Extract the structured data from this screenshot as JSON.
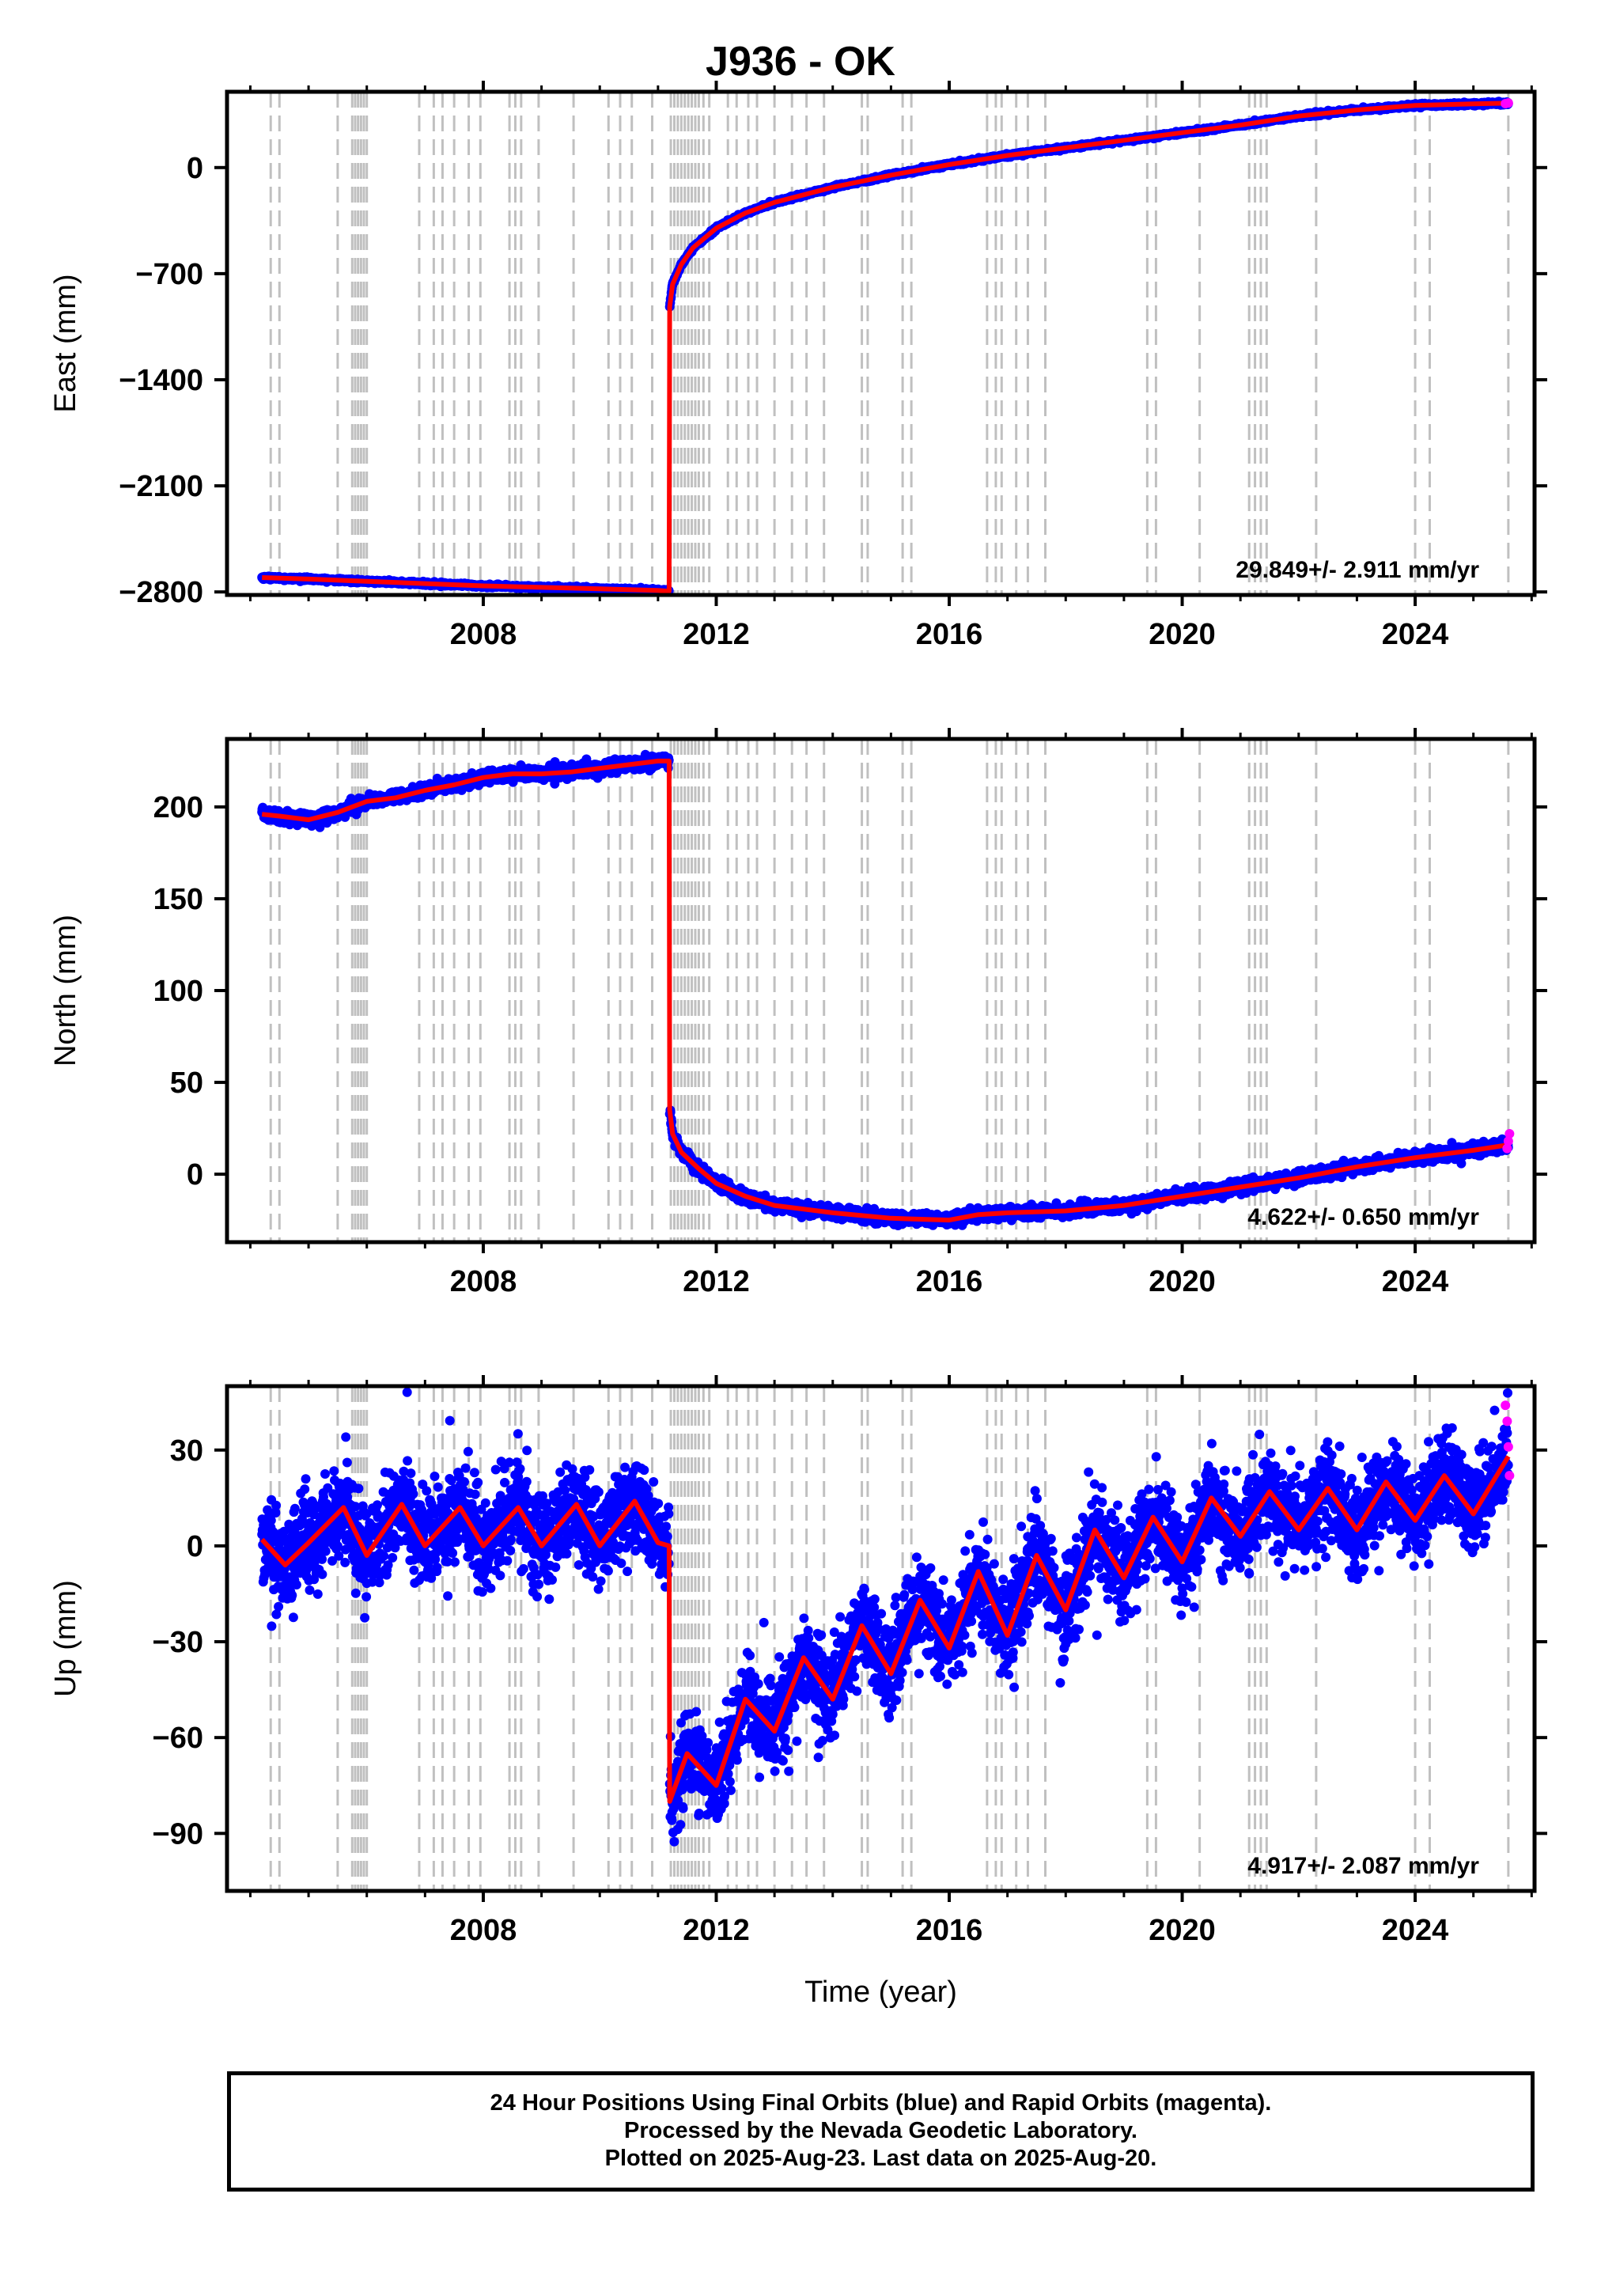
{
  "title": "J936 - OK",
  "colors": {
    "final_orbits": "#0000ff",
    "rapid_orbits": "#ff00ff",
    "model_fit": "#ff0000",
    "event_lines": "#c0c0c0"
  },
  "footer": {
    "line1": "24 Hour Positions Using Final Orbits (blue) and Rapid Orbits (magenta).",
    "line2": "Processed by the Nevada Geodetic Laboratory.",
    "line3": "Plotted on 2025-Aug-23. Last data on 2025-Aug-20."
  },
  "chart_data": [
    {
      "type": "scatter",
      "panel": "east",
      "ylabel": "East (mm)",
      "xlim": [
        2003.6,
        2026.05
      ],
      "ylim": [
        -2820,
        500
      ],
      "xticks": [
        2008,
        2012,
        2016,
        2020,
        2024
      ],
      "xtick_labels": [
        "2008",
        "2012",
        "2016",
        "2020",
        "2024"
      ],
      "yticks": [
        0,
        -700,
        -1400,
        -2100,
        -2800
      ],
      "ytick_labels": [
        "0",
        "−700",
        "−1400",
        "−2100",
        "−2800"
      ],
      "rate_label": "29.849+/- 2.911 mm/yr",
      "series": [
        {
          "kind": "final_orbits_and_fit",
          "x": [
            2004.2,
            2005.0,
            2006.0,
            2007.0,
            2008.0,
            2009.0,
            2010.0,
            2011.0,
            2011.19,
            2011.2,
            2011.25,
            2011.4,
            2011.6,
            2012.0,
            2012.5,
            2013.0,
            2014.0,
            2015.0,
            2016.0,
            2017.0,
            2018.0,
            2019.0,
            2020.0,
            2021.0,
            2022.0,
            2023.0,
            2024.0,
            2025.0,
            2025.6
          ],
          "y": [
            -2705,
            -2715,
            -2730,
            -2745,
            -2760,
            -2770,
            -2780,
            -2790,
            -2795,
            -920,
            -770,
            -640,
            -530,
            -400,
            -300,
            -230,
            -130,
            -50,
            20,
            80,
            130,
            180,
            230,
            280,
            340,
            380,
            410,
            420,
            425
          ]
        },
        {
          "kind": "rapid_orbits",
          "x": [
            2025.55,
            2025.6
          ],
          "y": [
            422,
            426
          ]
        }
      ]
    },
    {
      "type": "scatter",
      "panel": "north",
      "ylabel": "North (mm)",
      "xlim": [
        2003.6,
        2026.05
      ],
      "ylim": [
        -37,
        237
      ],
      "xticks": [
        2008,
        2012,
        2016,
        2020,
        2024
      ],
      "xtick_labels": [
        "2008",
        "2012",
        "2016",
        "2020",
        "2024"
      ],
      "yticks": [
        0,
        50,
        100,
        150,
        200
      ],
      "ytick_labels": [
        "0",
        "50",
        "100",
        "150",
        "200"
      ],
      "rate_label": "4.622+/- 0.650 mm/yr",
      "series": [
        {
          "kind": "final_orbits_and_fit",
          "x": [
            2004.2,
            2004.5,
            2005.0,
            2005.5,
            2006.0,
            2006.5,
            2007.0,
            2007.5,
            2008.0,
            2008.5,
            2009.0,
            2009.5,
            2010.0,
            2010.5,
            2011.0,
            2011.19,
            2011.2,
            2011.25,
            2011.4,
            2011.7,
            2012.0,
            2012.5,
            2013.0,
            2014.0,
            2015.0,
            2016.0,
            2016.5,
            2017.0,
            2018.0,
            2019.0,
            2020.0,
            2021.0,
            2022.0,
            2023.0,
            2024.0,
            2025.0,
            2025.6
          ],
          "y": [
            196,
            195,
            193,
            197,
            203,
            205,
            209,
            212,
            216,
            218,
            218,
            219,
            221,
            223,
            225,
            225,
            35,
            22,
            12,
            3,
            -5,
            -12,
            -17,
            -21,
            -24,
            -25,
            -22,
            -21,
            -20,
            -17,
            -12,
            -7,
            -2,
            4,
            9,
            13,
            16
          ]
        },
        {
          "kind": "rapid_orbits",
          "x": [
            2025.58,
            2025.6,
            2025.62
          ],
          "y": [
            14,
            18,
            22
          ]
        }
      ]
    },
    {
      "type": "scatter",
      "panel": "up",
      "ylabel": "Up (mm)",
      "xlabel": "Time (year)",
      "xlim": [
        2003.6,
        2026.05
      ],
      "ylim": [
        -108,
        50
      ],
      "xticks": [
        2008,
        2012,
        2016,
        2020,
        2024
      ],
      "xtick_labels": [
        "2008",
        "2012",
        "2016",
        "2020",
        "2024"
      ],
      "yticks": [
        30,
        0,
        -30,
        -60,
        -90
      ],
      "ytick_labels": [
        "30",
        "0",
        "−30",
        "−60",
        "−90"
      ],
      "rate_label": "4.917+/- 2.087 mm/yr",
      "series": [
        {
          "kind": "final_orbits_and_fit",
          "x": [
            2004.2,
            2004.6,
            2005.0,
            2005.6,
            2006.0,
            2006.6,
            2007.0,
            2007.6,
            2008.0,
            2008.6,
            2009.0,
            2009.6,
            2010.0,
            2010.6,
            2011.0,
            2011.19,
            2011.2,
            2011.5,
            2012.0,
            2012.5,
            2013.0,
            2013.5,
            2014.0,
            2014.5,
            2015.0,
            2015.5,
            2016.0,
            2016.5,
            2017.0,
            2017.5,
            2018.0,
            2018.5,
            2019.0,
            2019.5,
            2020.0,
            2020.5,
            2021.0,
            2021.5,
            2022.0,
            2022.5,
            2023.0,
            2023.5,
            2024.0,
            2024.5,
            2025.0,
            2025.6
          ],
          "y": [
            2,
            -6,
            1,
            12,
            -3,
            13,
            0,
            12,
            0,
            12,
            0,
            13,
            0,
            14,
            1,
            0,
            -80,
            -65,
            -75,
            -48,
            -58,
            -35,
            -48,
            -25,
            -40,
            -17,
            -32,
            -8,
            -28,
            -3,
            -20,
            5,
            -10,
            9,
            -5,
            15,
            3,
            17,
            5,
            18,
            5,
            20,
            8,
            22,
            10,
            28
          ]
        },
        {
          "kind": "rapid_orbits",
          "x": [
            2025.55,
            2025.58,
            2025.6,
            2025.62
          ],
          "y": [
            44,
            39,
            31,
            22
          ]
        }
      ]
    }
  ]
}
